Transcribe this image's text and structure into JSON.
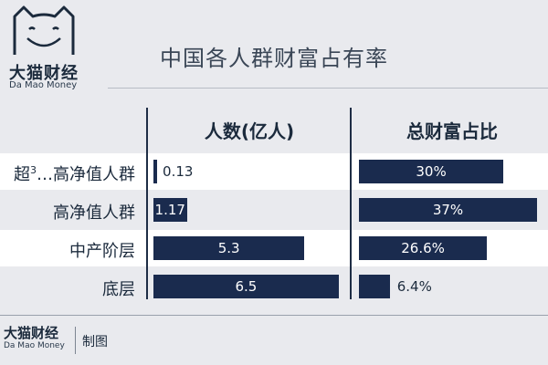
{
  "brand": {
    "name_cn": "大猫财经",
    "name_en": "Da Mao Money"
  },
  "footer": {
    "brand_cn": "大猫财经",
    "brand_en": "Da Mao Money",
    "credit": "制图"
  },
  "chart_data": {
    "type": "bar",
    "title": "中国各人群财富占有率",
    "categories": [
      "超³…高净值人群",
      "高净值人群",
      "中产阶层",
      "底层"
    ],
    "category_display": [
      {
        "pre": "超",
        "sup": "3",
        "post": "…高净值人群"
      },
      {
        "pre": "高净值人群",
        "sup": "",
        "post": ""
      },
      {
        "pre": "中产阶层",
        "sup": "",
        "post": ""
      },
      {
        "pre": "底层",
        "sup": "",
        "post": ""
      }
    ],
    "series": [
      {
        "name": "人数(亿人)",
        "values": [
          0.13,
          1.17,
          5.3,
          6.5
        ],
        "labels": [
          "0.13",
          "1.17",
          "5.3",
          "6.5"
        ]
      },
      {
        "name": "总财富占比",
        "values": [
          30,
          37,
          26.6,
          6.4
        ],
        "labels": [
          "30%",
          "37%",
          "26.6%",
          "6.4%"
        ]
      }
    ],
    "highlighted_rows": [
      0,
      2
    ],
    "colors": {
      "bar": "#1a2b4e",
      "row_highlight": "#ffffff",
      "background": "#e9eaee"
    }
  }
}
